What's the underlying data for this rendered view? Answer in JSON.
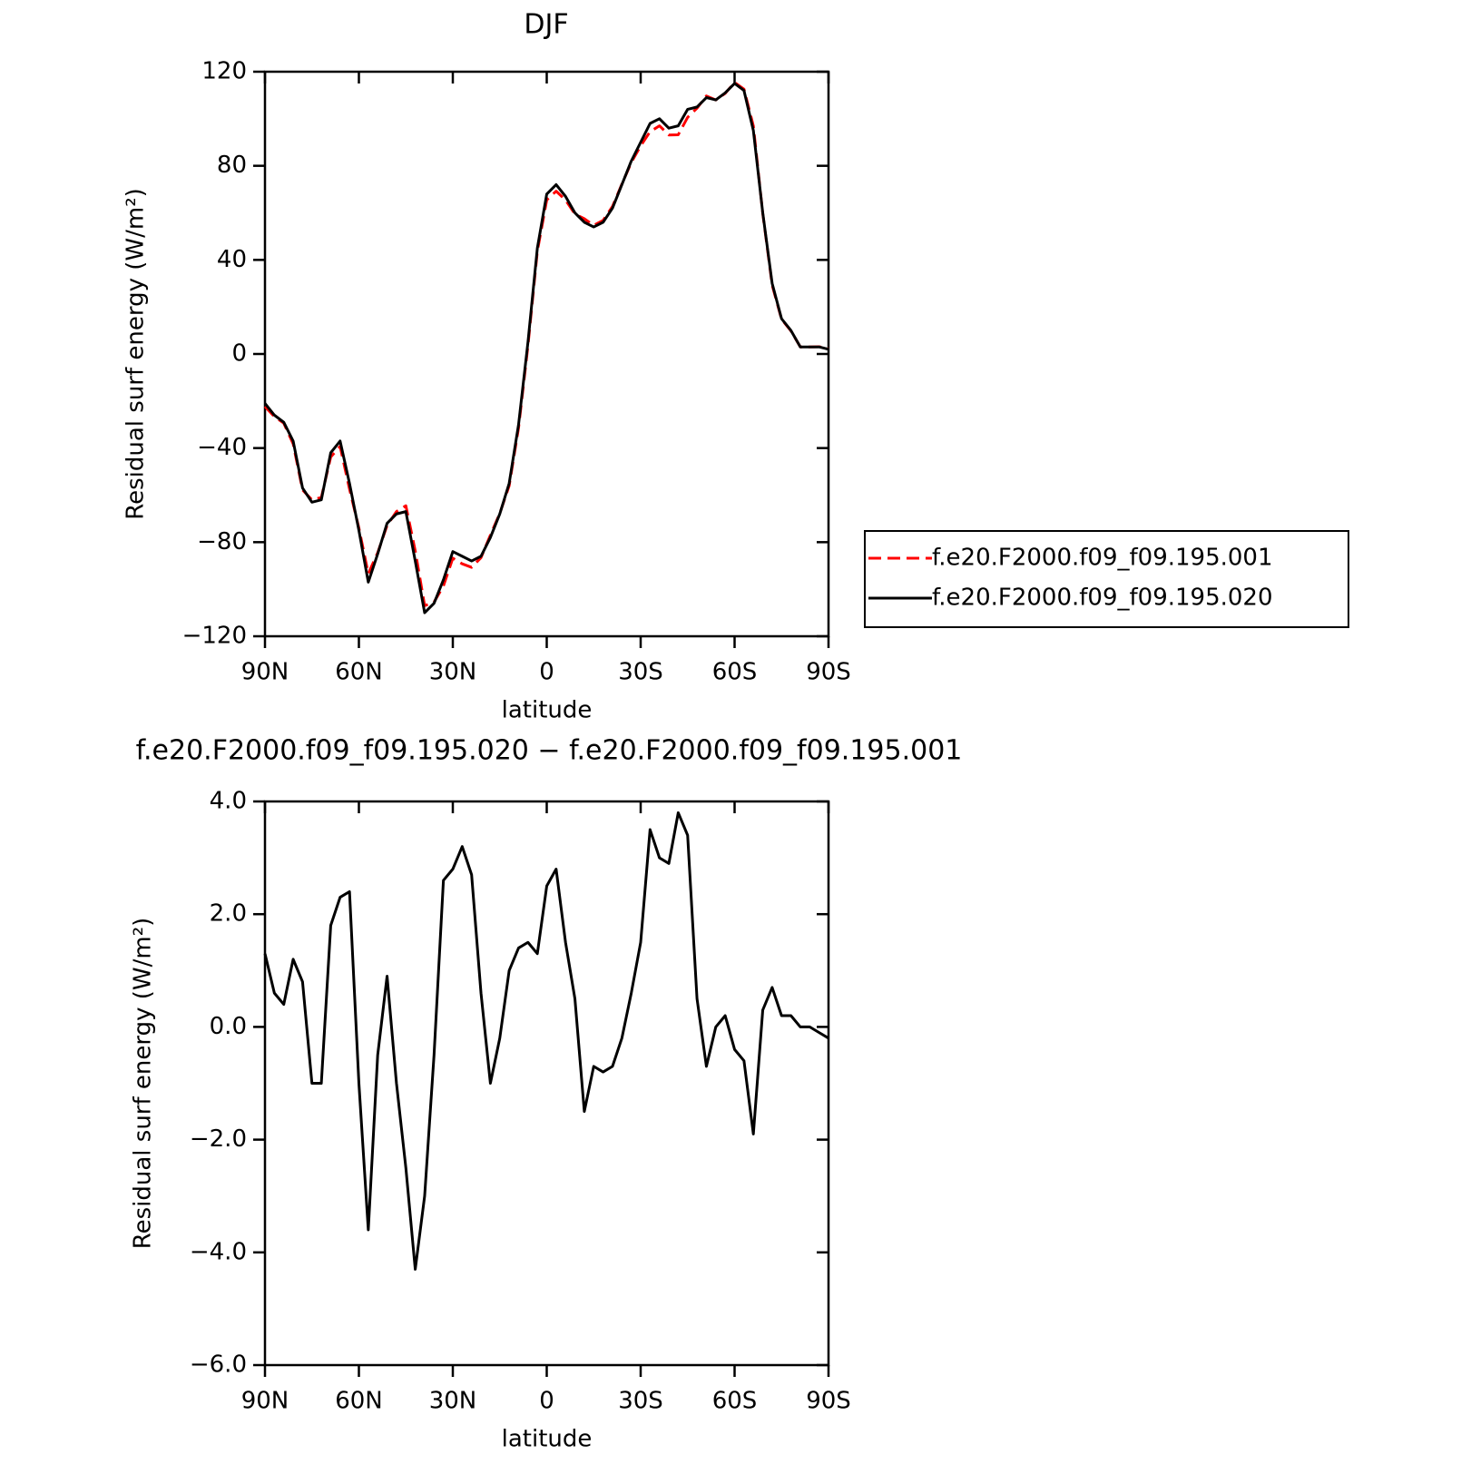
{
  "chart_data": [
    {
      "type": "line",
      "title": "DJF",
      "xlabel": "latitude",
      "ylabel": "Residual surf energy (W/m²)",
      "x": [
        90,
        87,
        84,
        81,
        78,
        75,
        72,
        69,
        66,
        63,
        60,
        57,
        54,
        51,
        48,
        45,
        42,
        39,
        36,
        33,
        30,
        27,
        24,
        21,
        18,
        15,
        12,
        9,
        6,
        3,
        0,
        -3,
        -6,
        -9,
        -12,
        -15,
        -18,
        -21,
        -24,
        -27,
        -30,
        -33,
        -36,
        -39,
        -42,
        -45,
        -48,
        -51,
        -54,
        -57,
        -60,
        -63,
        -66,
        -69,
        -72,
        -75,
        -78,
        -81,
        -84,
        -87,
        -90
      ],
      "xlim": [
        90,
        -90
      ],
      "xticks": [
        {
          "value": 90,
          "label": "90N"
        },
        {
          "value": 60,
          "label": "60N"
        },
        {
          "value": 30,
          "label": "30N"
        },
        0,
        {
          "value": -30,
          "label": "30S"
        },
        {
          "value": -60,
          "label": "60S"
        },
        {
          "value": -90,
          "label": "90S"
        }
      ],
      "ylim": [
        -120,
        120
      ],
      "yticks": [
        {
          "value": -120,
          "label": "−120"
        },
        {
          "value": -80,
          "label": "−80"
        },
        {
          "value": -40,
          "label": "−40"
        },
        0,
        40,
        80,
        120
      ],
      "legend": "right",
      "series": [
        {
          "name": "f.e20.F2000.f09_f09.195.001",
          "color": "#ff0000",
          "dash": true,
          "values": [
            -22.3,
            -26.6,
            -29.4,
            -38.2,
            -57.8,
            -62,
            -61,
            -43.8,
            -39.3,
            -57.4,
            -74,
            -93.4,
            -84.5,
            -72.9,
            -67,
            -64.5,
            -83.7,
            -107,
            -105.5,
            -98.6,
            -86.8,
            -89.2,
            -90.7,
            -86.6,
            -77,
            -67.8,
            -56,
            -31.4,
            3.5,
            43.7,
            65.5,
            69.2,
            65.5,
            59.5,
            57.5,
            54.7,
            56.8,
            62.7,
            72.2,
            81.4,
            88.5,
            94.5,
            97,
            93.1,
            93.2,
            100.6,
            104.5,
            109.7,
            108,
            110.8,
            115.4,
            112.6,
            96.9,
            59.7,
            29.3,
            14.8,
            9.8,
            3,
            3,
            3.1,
            2.2
          ]
        },
        {
          "name": "f.e20.F2000.f09_f09.195.020",
          "color": "#000000",
          "dash": false,
          "values": [
            -21,
            -26,
            -29,
            -37,
            -57,
            -63,
            -62,
            -42,
            -37,
            -55,
            -75,
            -97,
            -85,
            -72,
            -68,
            -67,
            -88,
            -110,
            -106,
            -96,
            -84,
            -86,
            -88,
            -86,
            -78,
            -68,
            -55,
            -30,
            5,
            45,
            68,
            72,
            67,
            60,
            56,
            54,
            56,
            62,
            72,
            82,
            90,
            98,
            100,
            96,
            97,
            104,
            105,
            109,
            108,
            111,
            115,
            112,
            95,
            60,
            30,
            15,
            10,
            3,
            3,
            3,
            2
          ]
        }
      ]
    },
    {
      "type": "line",
      "title": "f.e20.F2000.f09_f09.195.020 − f.e20.F2000.f09_f09.195.001",
      "xlabel": "latitude",
      "ylabel": "Residual surf energy (W/m²)",
      "x": [
        90,
        87,
        84,
        81,
        78,
        75,
        72,
        69,
        66,
        63,
        60,
        57,
        54,
        51,
        48,
        45,
        42,
        39,
        36,
        33,
        30,
        27,
        24,
        21,
        18,
        15,
        12,
        9,
        6,
        3,
        0,
        -3,
        -6,
        -9,
        -12,
        -15,
        -18,
        -21,
        -24,
        -27,
        -30,
        -33,
        -36,
        -39,
        -42,
        -45,
        -48,
        -51,
        -54,
        -57,
        -60,
        -63,
        -66,
        -69,
        -72,
        -75,
        -78,
        -81,
        -84,
        -87,
        -90
      ],
      "xlim": [
        90,
        -90
      ],
      "xticks": [
        {
          "value": 90,
          "label": "90N"
        },
        {
          "value": 60,
          "label": "60N"
        },
        {
          "value": 30,
          "label": "30N"
        },
        0,
        {
          "value": -30,
          "label": "30S"
        },
        {
          "value": -60,
          "label": "60S"
        },
        {
          "value": -90,
          "label": "90S"
        }
      ],
      "ylim": [
        -6,
        4
      ],
      "yticks": [
        {
          "value": -6,
          "label": "−6.0"
        },
        {
          "value": -4,
          "label": "−4.0"
        },
        {
          "value": -2,
          "label": "−2.0"
        },
        {
          "value": 0,
          "label": "0.0"
        },
        {
          "value": 2,
          "label": "2.0"
        },
        {
          "value": 4,
          "label": "4.0"
        }
      ],
      "series": [
        {
          "color": "#000000",
          "dash": false,
          "values": [
            1.3,
            0.6,
            0.4,
            1.2,
            0.8,
            -1.0,
            -1.0,
            1.8,
            2.3,
            2.4,
            -1.0,
            -3.6,
            -0.5,
            0.9,
            -1.0,
            -2.5,
            -4.3,
            -3.0,
            -0.5,
            2.6,
            2.8,
            3.2,
            2.7,
            0.6,
            -1.0,
            -0.2,
            1.0,
            1.4,
            1.5,
            1.3,
            2.5,
            2.8,
            1.5,
            0.5,
            -1.5,
            -0.7,
            -0.8,
            -0.7,
            -0.2,
            0.6,
            1.5,
            3.5,
            3.0,
            2.9,
            3.8,
            3.4,
            0.5,
            -0.7,
            0.0,
            0.2,
            -0.4,
            -0.6,
            -1.9,
            0.3,
            0.7,
            0.2,
            0.2,
            0.0,
            0.0,
            -0.1,
            -0.2
          ]
        }
      ]
    }
  ]
}
